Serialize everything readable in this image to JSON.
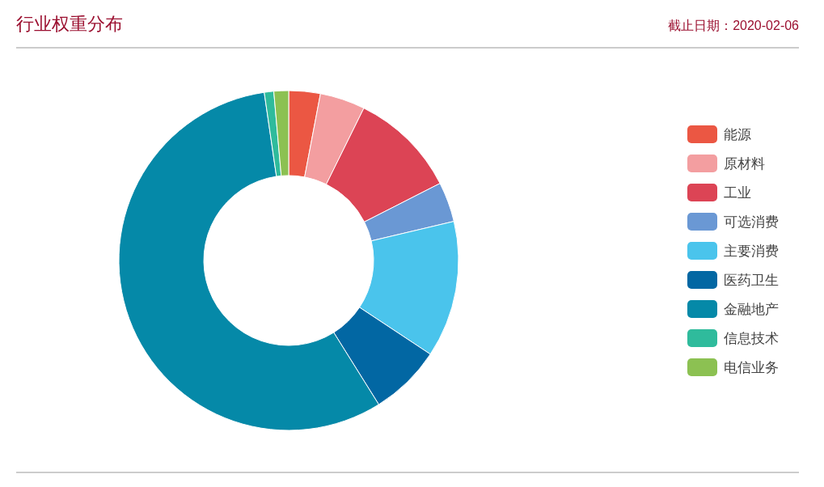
{
  "chart_data": {
    "type": "donut",
    "title": "行业权重分布",
    "subtitle": "截止日期：2020-02-06",
    "categories": [
      "能源",
      "原材料",
      "工业",
      "可选消费",
      "主要消费",
      "医药卫生",
      "金融地产",
      "信息技术",
      "电信业务"
    ],
    "values": [
      3,
      4.3,
      10.2,
      3.8,
      13,
      6.8,
      56.6,
      0.9,
      1.4
    ],
    "colors": [
      "#eb5743",
      "#f39ea0",
      "#dc4455",
      "#6a98d4",
      "#4ac4ec",
      "#0267a3",
      "#0589a8",
      "#2fbb9c",
      "#8cc152"
    ],
    "legend": "right"
  }
}
